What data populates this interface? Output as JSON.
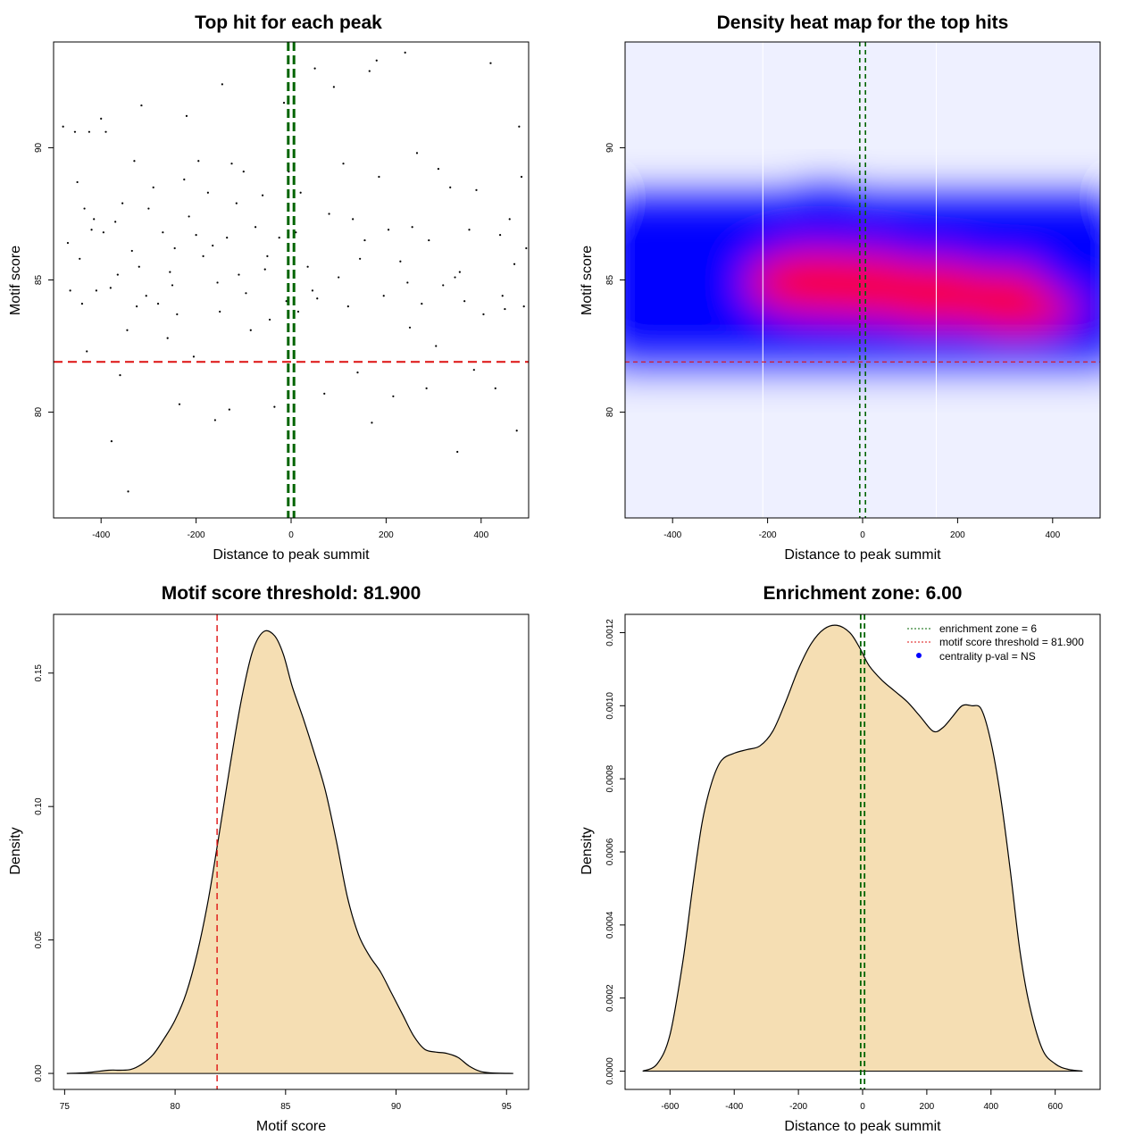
{
  "chart_data": [
    {
      "type": "scatter",
      "title": "Top hit for each peak",
      "xlabel": "Distance to peak summit",
      "ylabel": "Motif score",
      "xlim": [
        -500,
        500
      ],
      "ylim": [
        76,
        94
      ],
      "xticks": [
        -400,
        -200,
        0,
        200,
        400
      ],
      "yticks": [
        80,
        85,
        90
      ],
      "threshold": 81.9,
      "zone": [
        -6,
        6
      ],
      "colors": {
        "points": "#000000",
        "threshold": "#dd1111",
        "zone": "#006400"
      },
      "grid": false,
      "points": [
        [
          -480,
          90.8
        ],
        [
          -470,
          86.4
        ],
        [
          -465,
          84.6
        ],
        [
          -455,
          90.6
        ],
        [
          -450,
          88.7
        ],
        [
          -445,
          85.8
        ],
        [
          -440,
          84.1
        ],
        [
          -435,
          87.7
        ],
        [
          -430,
          82.3
        ],
        [
          -425,
          90.6
        ],
        [
          -420,
          86.9
        ],
        [
          -415,
          87.3
        ],
        [
          -410,
          84.6
        ],
        [
          -400,
          91.1
        ],
        [
          -395,
          86.8
        ],
        [
          -390,
          90.6
        ],
        [
          -380,
          84.7
        ],
        [
          -378,
          78.9
        ],
        [
          -370,
          87.2
        ],
        [
          -365,
          85.2
        ],
        [
          -360,
          81.4
        ],
        [
          -355,
          87.9
        ],
        [
          -345,
          83.1
        ],
        [
          -343,
          77.0
        ],
        [
          -335,
          86.1
        ],
        [
          -330,
          89.5
        ],
        [
          -325,
          84.0
        ],
        [
          -315,
          91.6
        ],
        [
          -305,
          84.4
        ],
        [
          -300,
          87.7
        ],
        [
          -290,
          88.5
        ],
        [
          -280,
          84.1
        ],
        [
          -270,
          86.8
        ],
        [
          -260,
          82.8
        ],
        [
          -255,
          85.3
        ],
        [
          -245,
          86.2
        ],
        [
          -240,
          83.7
        ],
        [
          -235,
          80.3
        ],
        [
          -225,
          88.8
        ],
        [
          -220,
          91.2
        ],
        [
          -215,
          87.4
        ],
        [
          -205,
          82.1
        ],
        [
          -200,
          86.7
        ],
        [
          -195,
          89.5
        ],
        [
          -185,
          85.9
        ],
        [
          -175,
          88.3
        ],
        [
          -165,
          86.3
        ],
        [
          -160,
          79.7
        ],
        [
          -155,
          84.9
        ],
        [
          -145,
          92.4
        ],
        [
          -135,
          86.6
        ],
        [
          -130,
          80.1
        ],
        [
          -125,
          89.4
        ],
        [
          -115,
          87.9
        ],
        [
          -110,
          85.2
        ],
        [
          -100,
          89.1
        ],
        [
          -95,
          84.5
        ],
        [
          -85,
          83.1
        ],
        [
          -75,
          87.0
        ],
        [
          -60,
          88.2
        ],
        [
          -55,
          85.4
        ],
        [
          -45,
          83.5
        ],
        [
          -35,
          80.2
        ],
        [
          -25,
          86.6
        ],
        [
          -15,
          91.7
        ],
        [
          -10,
          84.2
        ],
        [
          -5,
          89.1
        ],
        [
          10,
          86.8
        ],
        [
          15,
          83.8
        ],
        [
          20,
          88.3
        ],
        [
          35,
          85.5
        ],
        [
          50,
          93.0
        ],
        [
          55,
          84.3
        ],
        [
          70,
          80.7
        ],
        [
          80,
          87.5
        ],
        [
          90,
          92.3
        ],
        [
          100,
          85.1
        ],
        [
          110,
          89.4
        ],
        [
          120,
          84.0
        ],
        [
          130,
          87.3
        ],
        [
          140,
          81.5
        ],
        [
          155,
          86.5
        ],
        [
          165,
          92.9
        ],
        [
          170,
          79.6
        ],
        [
          180,
          93.3
        ],
        [
          185,
          88.9
        ],
        [
          195,
          84.4
        ],
        [
          205,
          86.9
        ],
        [
          215,
          80.6
        ],
        [
          230,
          85.7
        ],
        [
          240,
          93.6
        ],
        [
          250,
          83.2
        ],
        [
          255,
          87.0
        ],
        [
          265,
          89.8
        ],
        [
          275,
          84.1
        ],
        [
          285,
          80.9
        ],
        [
          290,
          86.5
        ],
        [
          305,
          82.5
        ],
        [
          310,
          89.2
        ],
        [
          320,
          84.8
        ],
        [
          335,
          88.5
        ],
        [
          350,
          78.5
        ],
        [
          355,
          85.3
        ],
        [
          365,
          84.2
        ],
        [
          375,
          86.9
        ],
        [
          385,
          81.6
        ],
        [
          390,
          88.4
        ],
        [
          405,
          83.7
        ],
        [
          420,
          93.2
        ],
        [
          430,
          80.9
        ],
        [
          440,
          86.7
        ],
        [
          450,
          83.9
        ],
        [
          460,
          87.3
        ],
        [
          470,
          85.6
        ],
        [
          475,
          79.3
        ],
        [
          480,
          90.8
        ],
        [
          485,
          88.9
        ],
        [
          490,
          84.0
        ],
        [
          495,
          86.2
        ],
        [
          -320,
          85.5
        ],
        [
          -250,
          84.8
        ],
        [
          -150,
          83.8
        ],
        [
          -50,
          85.9
        ],
        [
          45,
          84.6
        ],
        [
          145,
          85.8
        ],
        [
          245,
          84.9
        ],
        [
          345,
          85.1
        ],
        [
          445,
          84.4
        ]
      ]
    },
    {
      "type": "heatmap",
      "title": "Density heat map for the top hits",
      "xlabel": "Distance to peak summit",
      "ylabel": "Motif score",
      "xlim": [
        -500,
        500
      ],
      "ylim": [
        76,
        94
      ],
      "xticks": [
        -400,
        -200,
        0,
        200,
        400
      ],
      "yticks": [
        80,
        85,
        90
      ],
      "threshold": 81.9,
      "zone": [
        -6,
        6
      ],
      "colors": {
        "low": "#ffffff",
        "mid": "#0000ff",
        "high": "#ff0000",
        "threshold": "#dd1111",
        "zone": "#006400"
      },
      "hotspots": [
        {
          "x": -100,
          "y": 84.9,
          "weight": 1.0
        },
        {
          "x": 0,
          "y": 84.8,
          "weight": 0.9
        },
        {
          "x": 150,
          "y": 84.5,
          "weight": 0.85
        },
        {
          "x": 320,
          "y": 84.2,
          "weight": 0.9
        },
        {
          "x": -380,
          "y": 85.0,
          "weight": 0.5
        },
        {
          "x": -480,
          "y": 85.0,
          "weight": 0.35
        },
        {
          "x": 460,
          "y": 85.2,
          "weight": 0.45
        },
        {
          "x": -80,
          "y": 87.5,
          "weight": 0.35
        },
        {
          "x": 250,
          "y": 87.0,
          "weight": 0.3
        }
      ]
    },
    {
      "type": "area",
      "title": "Motif score threshold: 81.900",
      "xlabel": "Motif score",
      "ylabel": "Density",
      "xlim": [
        74.5,
        96
      ],
      "ylim": [
        -0.006,
        0.172
      ],
      "xticks": [
        75,
        80,
        85,
        90,
        95
      ],
      "yticks": [
        0.0,
        0.05,
        0.1,
        0.15
      ],
      "ytick_labels": [
        "0.00",
        "0.05",
        "0.10",
        "0.15"
      ],
      "threshold": 81.9,
      "colors": {
        "fill": "#f5deb3",
        "line": "#000000",
        "threshold": "#dd1111"
      },
      "x": [
        75.1,
        76.0,
        77.0,
        77.5,
        78.0,
        78.5,
        79.0,
        79.5,
        80.0,
        80.5,
        81.0,
        81.5,
        82.0,
        82.5,
        83.0,
        83.5,
        84.0,
        84.5,
        84.9,
        85.3,
        85.8,
        86.3,
        86.8,
        87.3,
        87.8,
        88.3,
        88.8,
        89.3,
        89.8,
        90.3,
        90.8,
        91.3,
        91.8,
        92.3,
        92.8,
        93.3,
        93.8,
        94.3,
        95.3
      ],
      "y": [
        0.0,
        0.0003,
        0.0012,
        0.0012,
        0.0015,
        0.0035,
        0.007,
        0.013,
        0.02,
        0.03,
        0.045,
        0.065,
        0.09,
        0.116,
        0.14,
        0.158,
        0.1655,
        0.164,
        0.157,
        0.145,
        0.133,
        0.12,
        0.106,
        0.087,
        0.066,
        0.052,
        0.044,
        0.038,
        0.03,
        0.022,
        0.014,
        0.009,
        0.008,
        0.0075,
        0.006,
        0.0028,
        0.0008,
        0.0002,
        0.0
      ]
    },
    {
      "type": "area",
      "title": "Enrichment zone: 6.00",
      "xlabel": "Distance to peak summit",
      "ylabel": "Density",
      "xlim": [
        -740,
        740
      ],
      "ylim": [
        -5e-05,
        0.00125
      ],
      "xticks": [
        -600,
        -400,
        -200,
        0,
        200,
        400,
        600
      ],
      "yticks": [
        0.0,
        0.0002,
        0.0004,
        0.0006,
        0.0008,
        0.001,
        0.0012
      ],
      "ytick_labels": [
        "0.0000",
        "0.0002",
        "0.0004",
        "0.0006",
        "0.0008",
        "0.0010",
        "0.0012"
      ],
      "zone": [
        -6,
        6
      ],
      "colors": {
        "fill": "#f5deb3",
        "line": "#000000",
        "zone": "#006400",
        "threshold": "#dd1111",
        "pval": "#0000ff"
      },
      "x": [
        -685,
        -640,
        -600,
        -560,
        -530,
        -500,
        -470,
        -440,
        -400,
        -360,
        -320,
        -280,
        -240,
        -200,
        -160,
        -120,
        -80,
        -40,
        -10,
        20,
        60,
        100,
        140,
        180,
        220,
        250,
        280,
        310,
        340,
        370,
        400,
        430,
        460,
        490,
        520,
        560,
        600,
        640,
        685
      ],
      "y": [
        0.0,
        2e-05,
        0.0001,
        0.0003,
        0.0005,
        0.00068,
        0.00079,
        0.00085,
        0.00087,
        0.00088,
        0.00089,
        0.00093,
        0.00101,
        0.0011,
        0.00117,
        0.00121,
        0.00122,
        0.0012,
        0.00116,
        0.00111,
        0.00107,
        0.00104,
        0.00101,
        0.00097,
        0.00093,
        0.00094,
        0.00097,
        0.001,
        0.001,
        0.00099,
        0.0009,
        0.00075,
        0.00055,
        0.00033,
        0.00018,
        6e-05,
        2e-05,
        5e-06,
        0.0
      ],
      "legend": {
        "position": "top-right",
        "entries": [
          "enrichment zone = 6",
          "motif score threshold = 81.900",
          "centrality p-val = NS"
        ]
      }
    }
  ]
}
